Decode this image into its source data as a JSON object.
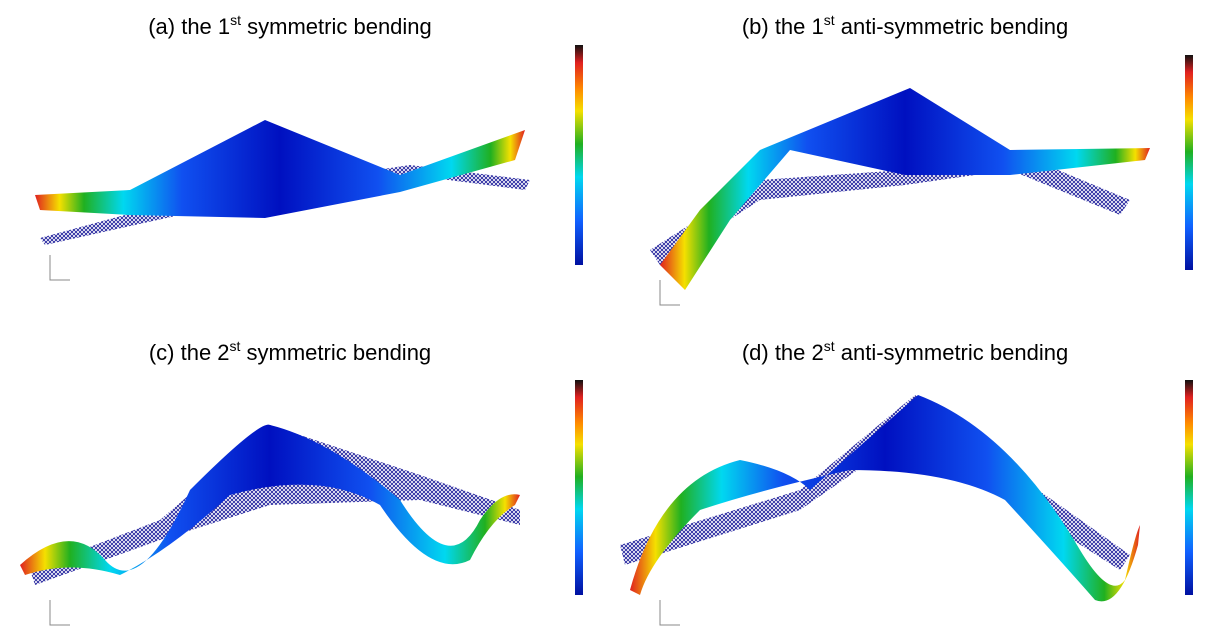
{
  "panels": [
    {
      "caption": [
        "(a) the 1",
        "st",
        " symmetric bending"
      ]
    },
    {
      "caption": [
        "(b) the 1",
        "st",
        " anti-symmetric bending"
      ]
    },
    {
      "caption": [
        "(c) the 2",
        "st",
        " symmetric bending"
      ]
    },
    {
      "caption": [
        "(d) the 2",
        "st",
        " anti-symmetric bending"
      ]
    }
  ]
}
